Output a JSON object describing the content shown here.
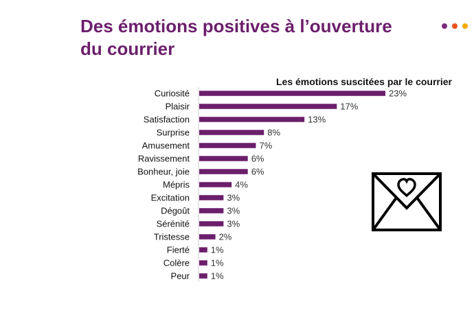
{
  "title": "Des émotions positives à l’ouverture du courrier",
  "colors": {
    "title": "#6b1f6b",
    "bar": "#6b1f6b",
    "dots": [
      "#7b2a7b",
      "#e8531e",
      "#f2a900"
    ]
  },
  "icon": "envelope-heart-icon",
  "chart_data": {
    "type": "bar",
    "orientation": "horizontal",
    "title": "Les émotions suscitées par le courrier",
    "xlabel": "",
    "ylabel": "",
    "value_suffix": "%",
    "xlim": [
      0,
      23
    ],
    "grid": false,
    "categories": [
      "Curiosité",
      "Plaisir",
      "Satisfaction",
      "Surprise",
      "Amusement",
      "Ravissement",
      "Bonheur, joie",
      "Mépris",
      "Excitation",
      "Dégoût",
      "Sérénité",
      "Tristesse",
      "Fierté",
      "Colère",
      "Peur"
    ],
    "values": [
      23,
      17,
      13,
      8,
      7,
      6,
      6,
      4,
      3,
      3,
      3,
      2,
      1,
      1,
      1
    ]
  }
}
